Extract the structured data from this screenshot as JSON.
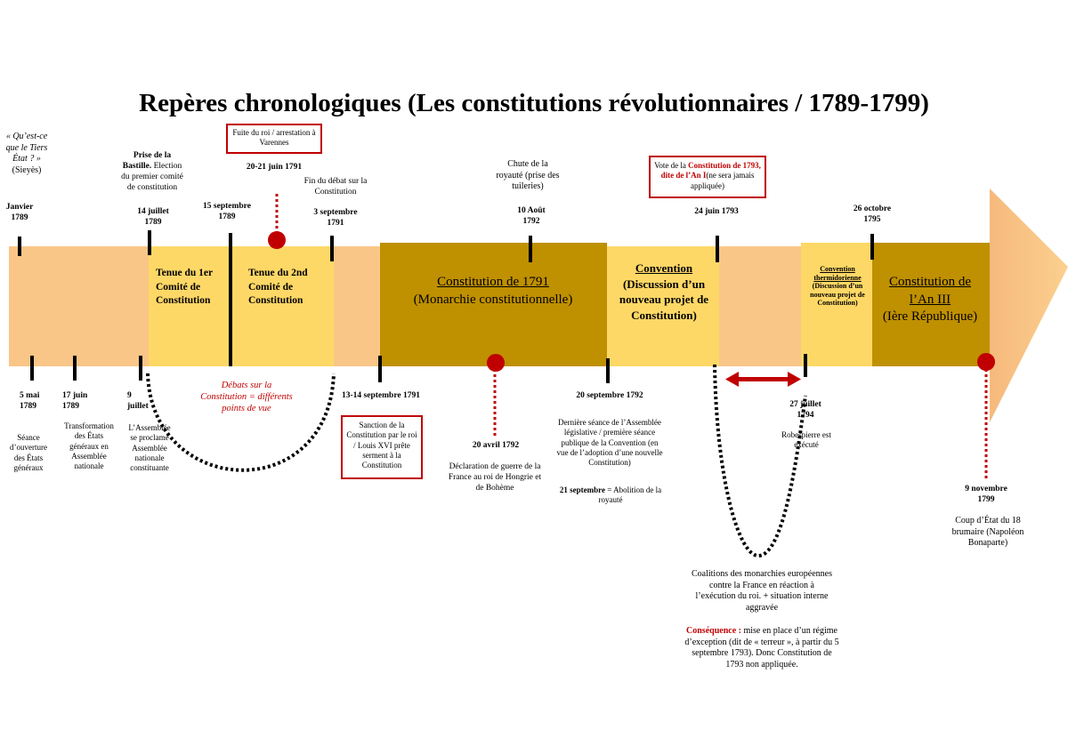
{
  "title": "Repères chronologiques (Les constitutions révolutionnaires / 1789-1799)",
  "colors": {
    "light": "#f9c687",
    "yellow": "#fed866",
    "gold": "#bf9000",
    "red": "#c00000"
  },
  "segments": {
    "first_committee": "Tenue du 1er Comité de Constitution",
    "second_committee": "Tenue du 2nd Comité de Constitution",
    "c1791_title": "Constitution de 1791",
    "c1791_sub": "(Monarchie constitutionnelle)",
    "convention_title": "Convention",
    "convention_sub": "(Discussion d’un nouveau projet de Constitution)",
    "thermidor_title": "Convention thermidorienne",
    "thermidor_sub": "(Discussion d’un nouveau projet de Constitution)",
    "an3_title": "Constitution de l’An III",
    "an3_sub": "(Ière République)"
  },
  "top_events": {
    "sieyes_quote": "« Qu’est-ce que le Tiers État ? »",
    "sieyes_author": "(Sieyès)",
    "jan1789": "Janvier 1789",
    "bastille_bold": "Prise de la Bastille.",
    "bastille_rest": "Election du premier comité de constitution",
    "jul14": "14 juillet 1789",
    "sep15": "15 septembre 1789",
    "varennes_box": "Fuite du roi / arrestation à Varennes",
    "jun20": "20-21 juin 1791",
    "fin_debat": "Fin du débat sur la Constitution",
    "sep3": "3 septembre 1791",
    "chute": "Chute de la royauté (prise des tuileries)",
    "aug10": "10 Août 1792",
    "vote_pre": "Vote de la ",
    "vote_red": "Constitution de 1793, dite de l’An I",
    "vote_post": "(ne sera jamais appliquée)",
    "jun24": "24 juin 1793",
    "oct26": "26 octobre 1795"
  },
  "bottom_events": {
    "may5": "5 mai 1789",
    "may5_desc": "Séance d’ouverture des États généraux",
    "jun17": "17 juin 1789",
    "jun17_desc": "Transformation des États généraux en Assemblée nationale",
    "jul9": "9 juillet",
    "jul9_desc": "L’Assemblée se proclame Assemblée nationale constituante",
    "debats": "Débats sur la Constitution = différents points de vue",
    "sep13": "13-14 septembre 1791",
    "sanction_box": "Sanction de la Constitution par le roi / Louis XVI prête serment à la Constitution",
    "apr20": "20 avril 1792",
    "apr20_desc": "Déclaration de guerre de la France au roi de Hongrie et de Bohème",
    "sep20": "20 septembre 1792",
    "sep20_desc": "Dernière séance de l’Assemblée législative / première séance publique de la Convention (en vue de l’adoption d’une nouvelle Constitution)",
    "sep21_bold": "21 septembre",
    "sep21_rest": " = Abolition de la royauté",
    "jul27": "27 juillet 1794",
    "jul27_desc": "Robespierre est exécuté",
    "coalitions": "Coalitions des monarchies européennes contre la France en réaction à l’exécution du roi. + situation interne aggravée",
    "consequence_label": "Conséquence :",
    "consequence_text": " mise en place d’un régime d’exception (dit de « terreur », à partir du 5 septembre 1793). Donc Constitution de 1793 non appliquée.",
    "nov9": "9 novembre 1799",
    "nov9_desc": "Coup d’État du 18 brumaire (Napoléon Bonaparte)"
  }
}
